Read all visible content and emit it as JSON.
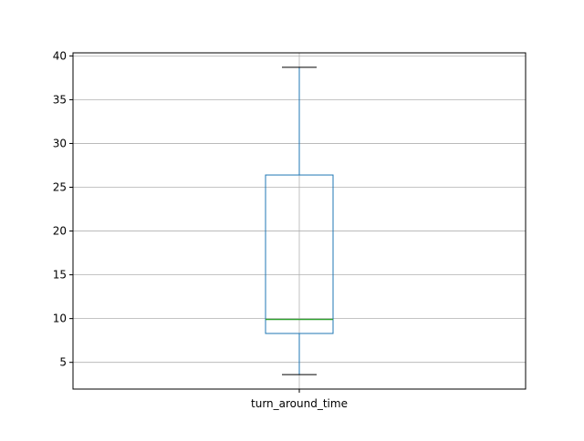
{
  "chart_data": {
    "type": "boxplot",
    "categories": [
      "turn_around_time"
    ],
    "boxes": [
      {
        "name": "turn_around_time",
        "whisker_low": 3.6,
        "q1": 8.3,
        "median": 9.9,
        "q3": 26.4,
        "whisker_high": 38.7
      }
    ],
    "title": "",
    "xlabel": "",
    "ylabel": "",
    "ylim": [
      1.95,
      40.35
    ],
    "yticks": [
      5,
      10,
      15,
      20,
      25,
      30,
      35,
      40
    ],
    "ytick_labels": [
      "5",
      "10",
      "15",
      "20",
      "25",
      "30",
      "35",
      "40"
    ],
    "grid": true,
    "colors": {
      "box": "#1f77b4",
      "whisker": "#1f77b4",
      "cap": "#000000",
      "median": "#2ca02c",
      "grid": "#b0b0b0",
      "axes": "#000000"
    }
  }
}
